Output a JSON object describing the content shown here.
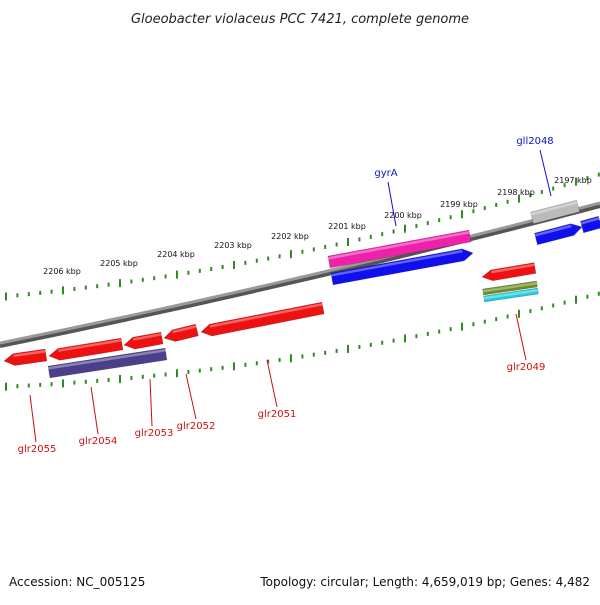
{
  "title": "Gloeobacter violaceus PCC 7421, complete genome",
  "footer": {
    "accession": "Accession: NC_005125",
    "summary": "Topology: circular; Length: 4,659,019 bp; Genes: 4,482"
  },
  "colors": {
    "backbone": "#888888",
    "tick": "#2e8b1e",
    "forward_label": "#1010cc",
    "reverse_label": "#cc1010"
  },
  "kbp_labels": [
    "2197 kbp",
    "2198 kbp",
    "2199 kbp",
    "2200 kbp",
    "2201 kbp",
    "2202 kbp",
    "2203 kbp",
    "2204 kbp",
    "2205 kbp",
    "2206 kbp"
  ],
  "genes": [
    {
      "name": "gll2048",
      "color": "#bbbbbb",
      "label": "gll2048"
    },
    {
      "name": "gll2048-cds",
      "color": "#1010ee",
      "label": ""
    },
    {
      "name": "gll2048-next",
      "color": "#1010ee",
      "label": ""
    },
    {
      "name": "gyrA",
      "color": "#ee22aa",
      "label": "gyrA"
    },
    {
      "name": "gyrA-cds",
      "color": "#1010ee",
      "label": ""
    },
    {
      "name": "glr2049",
      "color": "#ee1111",
      "label": "glr2049"
    },
    {
      "name": "glr2049-b",
      "color": "#6b8e23",
      "label": ""
    },
    {
      "name": "glr2049-c",
      "color": "#22ccdd",
      "label": ""
    },
    {
      "name": "glr2051",
      "color": "#ee1111",
      "label": "glr2051"
    },
    {
      "name": "glr2052",
      "color": "#ee1111",
      "label": "glr2052"
    },
    {
      "name": "glr2053",
      "color": "#ee1111",
      "label": "glr2053"
    },
    {
      "name": "glr2054",
      "color": "#ee1111",
      "label": "glr2054"
    },
    {
      "name": "glr2054-cds",
      "color": "#4b3f8a",
      "label": ""
    },
    {
      "name": "glr2055",
      "color": "#ee1111",
      "label": "glr2055"
    }
  ]
}
